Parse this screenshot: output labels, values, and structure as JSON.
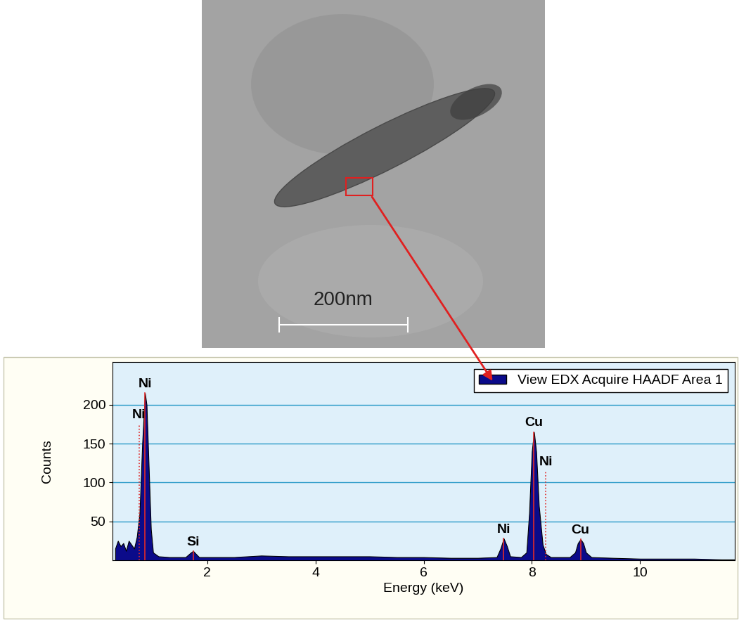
{
  "image": {
    "scale_bar_label": "200nm"
  },
  "chart_data": {
    "type": "area",
    "x_label": "Energy (keV)",
    "y_label": "Counts",
    "x": [
      0.3,
      0.35,
      0.4,
      0.45,
      0.5,
      0.55,
      0.6,
      0.65,
      0.7,
      0.75,
      0.8,
      0.85,
      0.88,
      0.92,
      0.96,
      1.0,
      1.1,
      1.3,
      1.6,
      1.7,
      1.74,
      1.78,
      1.85,
      2.5,
      3.0,
      3.5,
      4.0,
      4.5,
      5.0,
      5.5,
      6.0,
      6.5,
      7.0,
      7.35,
      7.42,
      7.48,
      7.54,
      7.6,
      7.8,
      7.9,
      7.95,
      8.0,
      8.04,
      8.08,
      8.13,
      8.2,
      8.26,
      8.35,
      8.7,
      8.8,
      8.85,
      8.9,
      8.95,
      9.0,
      9.1,
      9.5,
      10.0,
      10.5,
      11.0,
      11.5,
      11.75
    ],
    "series": [
      {
        "name": "View EDX Acquire HAADF Area 1",
        "color": "#0b0b8a",
        "values": [
          15,
          25,
          18,
          22,
          12,
          25,
          20,
          15,
          30,
          60,
          150,
          215,
          200,
          120,
          40,
          10,
          5,
          4,
          4,
          10,
          12,
          9,
          4,
          4,
          6,
          5,
          5,
          5,
          5,
          4,
          4,
          3,
          3,
          4,
          15,
          28,
          18,
          5,
          4,
          10,
          60,
          140,
          165,
          140,
          70,
          20,
          8,
          4,
          4,
          10,
          22,
          27,
          22,
          10,
          4,
          3,
          2,
          2,
          2,
          1,
          1
        ]
      }
    ],
    "peaks": [
      {
        "label": "Ni",
        "energy": 0.85,
        "height": 215,
        "line_style": "solid"
      },
      {
        "label": "Ni",
        "energy": 0.74,
        "height": 175,
        "line_style": "dotted"
      },
      {
        "label": "Si",
        "energy": 1.74,
        "height": 12,
        "line_style": "solid"
      },
      {
        "label": "Ni",
        "energy": 7.48,
        "height": 28,
        "line_style": "solid"
      },
      {
        "label": "Cu",
        "energy": 8.04,
        "height": 165,
        "line_style": "solid"
      },
      {
        "label": "Ni",
        "energy": 8.26,
        "height": 115,
        "line_style": "dotted"
      },
      {
        "label": "Cu",
        "energy": 8.9,
        "height": 27,
        "line_style": "solid"
      }
    ],
    "xlim": [
      0.25,
      11.75
    ],
    "xticks": [
      2,
      4,
      6,
      8,
      10
    ],
    "ylim": [
      0,
      255
    ],
    "yticks": [
      50,
      100,
      150,
      200
    ],
    "grid": true,
    "legend": "upper right"
  }
}
